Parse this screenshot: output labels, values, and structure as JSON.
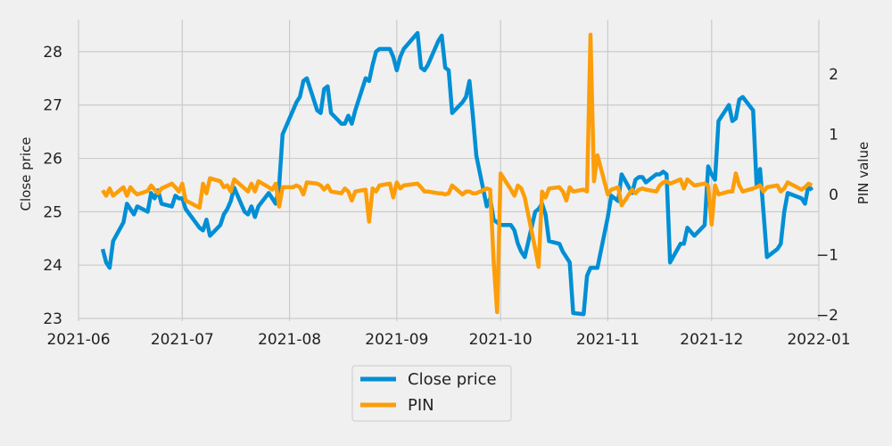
{
  "chart_data": {
    "type": "line",
    "title": "",
    "xlabel": "",
    "ylabel_left": "Close price",
    "ylabel_right": "PIN value",
    "grid": true,
    "legend_placement": "bottom-center",
    "xlim": [
      "2021-06-01",
      "2022-01-01"
    ],
    "ylim_left": [
      22.95,
      28.6
    ],
    "ylim_right": [
      -2.1,
      2.9
    ],
    "x_ticks": [
      "2021-06",
      "2021-07",
      "2021-08",
      "2021-09",
      "2021-10",
      "2021-11",
      "2021-12",
      "2022-01"
    ],
    "y_ticks_left": [
      "23",
      "24",
      "25",
      "26",
      "27",
      "28"
    ],
    "y_ticks_right": [
      "−2",
      "−1",
      "0",
      "1",
      "2"
    ],
    "series": [
      {
        "name": "Close price",
        "color": "#008fd5",
        "axis": "left",
        "x": [
          "2021-06-08",
          "2021-06-09",
          "2021-06-10",
          "2021-06-11",
          "2021-06-14",
          "2021-06-15",
          "2021-06-16",
          "2021-06-17",
          "2021-06-18",
          "2021-06-21",
          "2021-06-22",
          "2021-06-23",
          "2021-06-24",
          "2021-06-25",
          "2021-06-28",
          "2021-06-29",
          "2021-06-30",
          "2021-07-01",
          "2021-07-02",
          "2021-07-06",
          "2021-07-07",
          "2021-07-08",
          "2021-07-09",
          "2021-07-12",
          "2021-07-13",
          "2021-07-14",
          "2021-07-15",
          "2021-07-16",
          "2021-07-19",
          "2021-07-20",
          "2021-07-21",
          "2021-07-22",
          "2021-07-23",
          "2021-07-26",
          "2021-07-27",
          "2021-07-28",
          "2021-07-29",
          "2021-07-30",
          "2021-08-02",
          "2021-08-03",
          "2021-08-04",
          "2021-08-05",
          "2021-08-06",
          "2021-08-09",
          "2021-08-10",
          "2021-08-11",
          "2021-08-12",
          "2021-08-13",
          "2021-08-16",
          "2021-08-17",
          "2021-08-18",
          "2021-08-19",
          "2021-08-20",
          "2021-08-23",
          "2021-08-24",
          "2021-08-25",
          "2021-08-26",
          "2021-08-27",
          "2021-08-30",
          "2021-08-31",
          "2021-09-01",
          "2021-09-02",
          "2021-09-03",
          "2021-09-07",
          "2021-09-08",
          "2021-09-09",
          "2021-09-10",
          "2021-09-13",
          "2021-09-14",
          "2021-09-15",
          "2021-09-16",
          "2021-09-17",
          "2021-09-20",
          "2021-09-21",
          "2021-09-22",
          "2021-09-23",
          "2021-09-24",
          "2021-09-27",
          "2021-09-28",
          "2021-09-29",
          "2021-09-30",
          "2021-10-01",
          "2021-10-04",
          "2021-10-05",
          "2021-10-06",
          "2021-10-07",
          "2021-10-08",
          "2021-10-11",
          "2021-10-12",
          "2021-10-13",
          "2021-10-14",
          "2021-10-15",
          "2021-10-18",
          "2021-10-19",
          "2021-10-20",
          "2021-10-21",
          "2021-10-22",
          "2021-10-25",
          "2021-10-26",
          "2021-10-27",
          "2021-10-28",
          "2021-10-29",
          "2021-11-01",
          "2021-11-02",
          "2021-11-03",
          "2021-11-04",
          "2021-11-05",
          "2021-11-08",
          "2021-11-09",
          "2021-11-10",
          "2021-11-11",
          "2021-11-12",
          "2021-11-15",
          "2021-11-16",
          "2021-11-17",
          "2021-11-18",
          "2021-11-19",
          "2021-11-22",
          "2021-11-23",
          "2021-11-24",
          "2021-11-26",
          "2021-11-29",
          "2021-11-30",
          "2021-12-01",
          "2021-12-02",
          "2021-12-03",
          "2021-12-06",
          "2021-12-07",
          "2021-12-08",
          "2021-12-09",
          "2021-12-10",
          "2021-12-13",
          "2021-12-14",
          "2021-12-15",
          "2021-12-16",
          "2021-12-17",
          "2021-12-20",
          "2021-12-21",
          "2021-12-22",
          "2021-12-23",
          "2021-12-27",
          "2021-12-28",
          "2021-12-29",
          "2021-12-30"
        ],
        "values": [
          24.3,
          24.05,
          23.95,
          24.45,
          24.8,
          25.15,
          25.05,
          24.95,
          25.1,
          25.0,
          25.35,
          25.25,
          25.4,
          25.15,
          25.1,
          25.3,
          25.25,
          25.25,
          25.05,
          24.7,
          24.65,
          24.85,
          24.55,
          24.75,
          24.95,
          25.05,
          25.2,
          25.45,
          25.0,
          24.95,
          25.1,
          24.9,
          25.1,
          25.35,
          25.25,
          25.15,
          25.5,
          26.45,
          26.9,
          27.05,
          27.15,
          27.45,
          27.5,
          26.9,
          26.85,
          27.3,
          27.35,
          26.85,
          26.65,
          26.65,
          26.8,
          26.65,
          26.9,
          27.5,
          27.45,
          27.75,
          28.0,
          28.05,
          28.05,
          27.9,
          27.65,
          27.9,
          28.05,
          28.35,
          27.7,
          27.65,
          27.75,
          28.2,
          28.3,
          27.7,
          27.65,
          26.85,
          27.05,
          27.15,
          27.45,
          26.8,
          26.05,
          25.1,
          25.25,
          24.85,
          24.8,
          24.75,
          24.75,
          24.65,
          24.4,
          24.25,
          24.15,
          25.0,
          25.05,
          25.15,
          24.95,
          24.45,
          24.4,
          24.25,
          24.15,
          24.05,
          23.1,
          23.08,
          23.8,
          23.95,
          23.95,
          23.95,
          24.9,
          25.3,
          25.25,
          25.2,
          25.7,
          25.35,
          25.6,
          25.65,
          25.65,
          25.55,
          25.7,
          25.7,
          25.75,
          25.7,
          24.05,
          24.4,
          24.4,
          24.7,
          24.55,
          24.75,
          25.85,
          25.7,
          25.6,
          26.7,
          27.0,
          26.7,
          26.75,
          27.1,
          27.15,
          26.9,
          25.5,
          25.8,
          25.0,
          24.15,
          24.3,
          24.4,
          25.0,
          25.35,
          25.25,
          25.15,
          25.5,
          25.4
        ]
      },
      {
        "name": "PIN",
        "color": "#fc9e0a",
        "axis": "right",
        "x": [
          "2021-06-08",
          "2021-06-09",
          "2021-06-10",
          "2021-06-11",
          "2021-06-14",
          "2021-06-15",
          "2021-06-16",
          "2021-06-17",
          "2021-06-18",
          "2021-06-21",
          "2021-06-22",
          "2021-06-23",
          "2021-06-24",
          "2021-06-25",
          "2021-06-28",
          "2021-06-29",
          "2021-06-30",
          "2021-07-01",
          "2021-07-02",
          "2021-07-06",
          "2021-07-07",
          "2021-07-08",
          "2021-07-09",
          "2021-07-12",
          "2021-07-13",
          "2021-07-14",
          "2021-07-15",
          "2021-07-16",
          "2021-07-19",
          "2021-07-20",
          "2021-07-21",
          "2021-07-22",
          "2021-07-23",
          "2021-07-26",
          "2021-07-27",
          "2021-07-28",
          "2021-07-29",
          "2021-07-30",
          "2021-08-02",
          "2021-08-03",
          "2021-08-04",
          "2021-08-05",
          "2021-08-06",
          "2021-08-09",
          "2021-08-10",
          "2021-08-11",
          "2021-08-12",
          "2021-08-13",
          "2021-08-16",
          "2021-08-17",
          "2021-08-18",
          "2021-08-19",
          "2021-08-20",
          "2021-08-23",
          "2021-08-24",
          "2021-08-25",
          "2021-08-26",
          "2021-08-27",
          "2021-08-30",
          "2021-08-31",
          "2021-09-01",
          "2021-09-02",
          "2021-09-03",
          "2021-09-07",
          "2021-09-08",
          "2021-09-09",
          "2021-09-10",
          "2021-09-13",
          "2021-09-14",
          "2021-09-15",
          "2021-09-16",
          "2021-09-17",
          "2021-09-20",
          "2021-09-21",
          "2021-09-22",
          "2021-09-23",
          "2021-09-24",
          "2021-09-27",
          "2021-09-28",
          "2021-09-29",
          "2021-09-30",
          "2021-10-01",
          "2021-10-04",
          "2021-10-05",
          "2021-10-06",
          "2021-10-07",
          "2021-10-08",
          "2021-10-11",
          "2021-10-12",
          "2021-10-13",
          "2021-10-14",
          "2021-10-15",
          "2021-10-18",
          "2021-10-19",
          "2021-10-20",
          "2021-10-21",
          "2021-10-22",
          "2021-10-25",
          "2021-10-26",
          "2021-10-27",
          "2021-10-28",
          "2021-10-29",
          "2021-11-01",
          "2021-11-02",
          "2021-11-03",
          "2021-11-04",
          "2021-11-05",
          "2021-11-08",
          "2021-11-09",
          "2021-11-10",
          "2021-11-11",
          "2021-11-12",
          "2021-11-15",
          "2021-11-16",
          "2021-11-17",
          "2021-11-18",
          "2021-11-19",
          "2021-11-22",
          "2021-11-23",
          "2021-11-24",
          "2021-11-26",
          "2021-11-29",
          "2021-11-30",
          "2021-12-01",
          "2021-12-02",
          "2021-12-03",
          "2021-12-06",
          "2021-12-07",
          "2021-12-08",
          "2021-12-09",
          "2021-12-10",
          "2021-12-13",
          "2021-12-14",
          "2021-12-15",
          "2021-12-16",
          "2021-12-17",
          "2021-12-20",
          "2021-12-21",
          "2021-12-22",
          "2021-12-23",
          "2021-12-27",
          "2021-12-28",
          "2021-12-29",
          "2021-12-30"
        ],
        "values": [
          0.07,
          -0.02,
          0.1,
          -0.02,
          0.12,
          -0.02,
          0.12,
          0.05,
          0.0,
          0.06,
          0.15,
          0.08,
          0.02,
          0.1,
          0.18,
          0.12,
          0.05,
          0.18,
          -0.1,
          -0.22,
          0.18,
          0.02,
          0.27,
          0.22,
          0.12,
          0.15,
          0.05,
          0.25,
          0.1,
          0.05,
          0.18,
          0.05,
          0.22,
          0.12,
          0.08,
          0.18,
          -0.2,
          0.12,
          0.12,
          0.15,
          0.12,
          0.0,
          0.2,
          0.18,
          0.15,
          0.08,
          0.15,
          0.05,
          0.02,
          0.1,
          0.05,
          -0.1,
          0.05,
          0.08,
          -0.45,
          0.1,
          0.05,
          0.15,
          0.18,
          -0.05,
          0.2,
          0.1,
          0.15,
          0.18,
          0.12,
          0.05,
          0.05,
          0.02,
          0.02,
          0.0,
          0.02,
          0.15,
          0.0,
          0.05,
          0.05,
          0.02,
          0.02,
          0.1,
          0.08,
          -1.1,
          -1.95,
          0.35,
          0.08,
          -0.02,
          0.15,
          0.1,
          -0.05,
          -0.9,
          -1.2,
          0.05,
          -0.05,
          0.1,
          0.12,
          0.05,
          -0.1,
          0.12,
          0.05,
          0.08,
          0.05,
          2.65,
          0.22,
          0.65,
          0.0,
          0.08,
          0.1,
          0.12,
          -0.18,
          0.08,
          0.02,
          0.08,
          0.1,
          0.08,
          0.05,
          0.15,
          0.2,
          0.22,
          0.18,
          0.25,
          0.1,
          0.25,
          0.15,
          0.18,
          0.15,
          -0.5,
          0.15,
          0.0,
          0.05,
          0.05,
          0.35,
          0.15,
          0.05,
          0.1,
          0.12,
          0.15,
          0.05,
          0.12,
          0.15,
          0.05,
          0.1,
          0.2,
          0.08,
          0.12,
          0.18,
          0.15
        ]
      }
    ]
  }
}
